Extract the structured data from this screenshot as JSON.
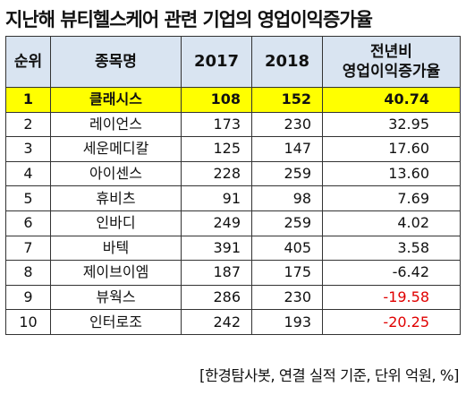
{
  "title": "지난해 뷰티헬스케어 관련 기업의 영업이익증가율",
  "header": {
    "rank": "순위",
    "company": "종목명",
    "y2017": "2017",
    "y2018": "2018",
    "growth_line1": "전년비",
    "growth_line2": "영업이익증가율"
  },
  "rows": [
    {
      "rank": "1",
      "company": "클래시스",
      "y2017": "108",
      "y2018": "152",
      "growth": "40.74",
      "highlight": true
    },
    {
      "rank": "2",
      "company": "레이언스",
      "y2017": "173",
      "y2018": "230",
      "growth": "32.95"
    },
    {
      "rank": "3",
      "company": "세운메디칼",
      "y2017": "125",
      "y2018": "147",
      "growth": "17.60"
    },
    {
      "rank": "4",
      "company": "아이센스",
      "y2017": "228",
      "y2018": "259",
      "growth": "13.60"
    },
    {
      "rank": "5",
      "company": "휴비츠",
      "y2017": "91",
      "y2018": "98",
      "growth": "7.69"
    },
    {
      "rank": "6",
      "company": "인바디",
      "y2017": "249",
      "y2018": "259",
      "growth": "4.02"
    },
    {
      "rank": "7",
      "company": "바텍",
      "y2017": "391",
      "y2018": "405",
      "growth": "3.58"
    },
    {
      "rank": "8",
      "company": "제이브이엠",
      "y2017": "187",
      "y2018": "175",
      "growth": "-6.42"
    },
    {
      "rank": "9",
      "company": "뷰웍스",
      "y2017": "286",
      "y2018": "230",
      "growth": "-19.58",
      "negative_color": true
    },
    {
      "rank": "10",
      "company": "인터로조",
      "y2017": "242",
      "y2018": "193",
      "growth": "-20.25",
      "negative_color": true
    }
  ],
  "source": "[한경탐사봇, 연결 실적 기준, 단위 억원, %]",
  "colors": {
    "header_bg": "#d9e4f1",
    "highlight_bg": "#ffff00",
    "negative_text": "#e00000"
  }
}
